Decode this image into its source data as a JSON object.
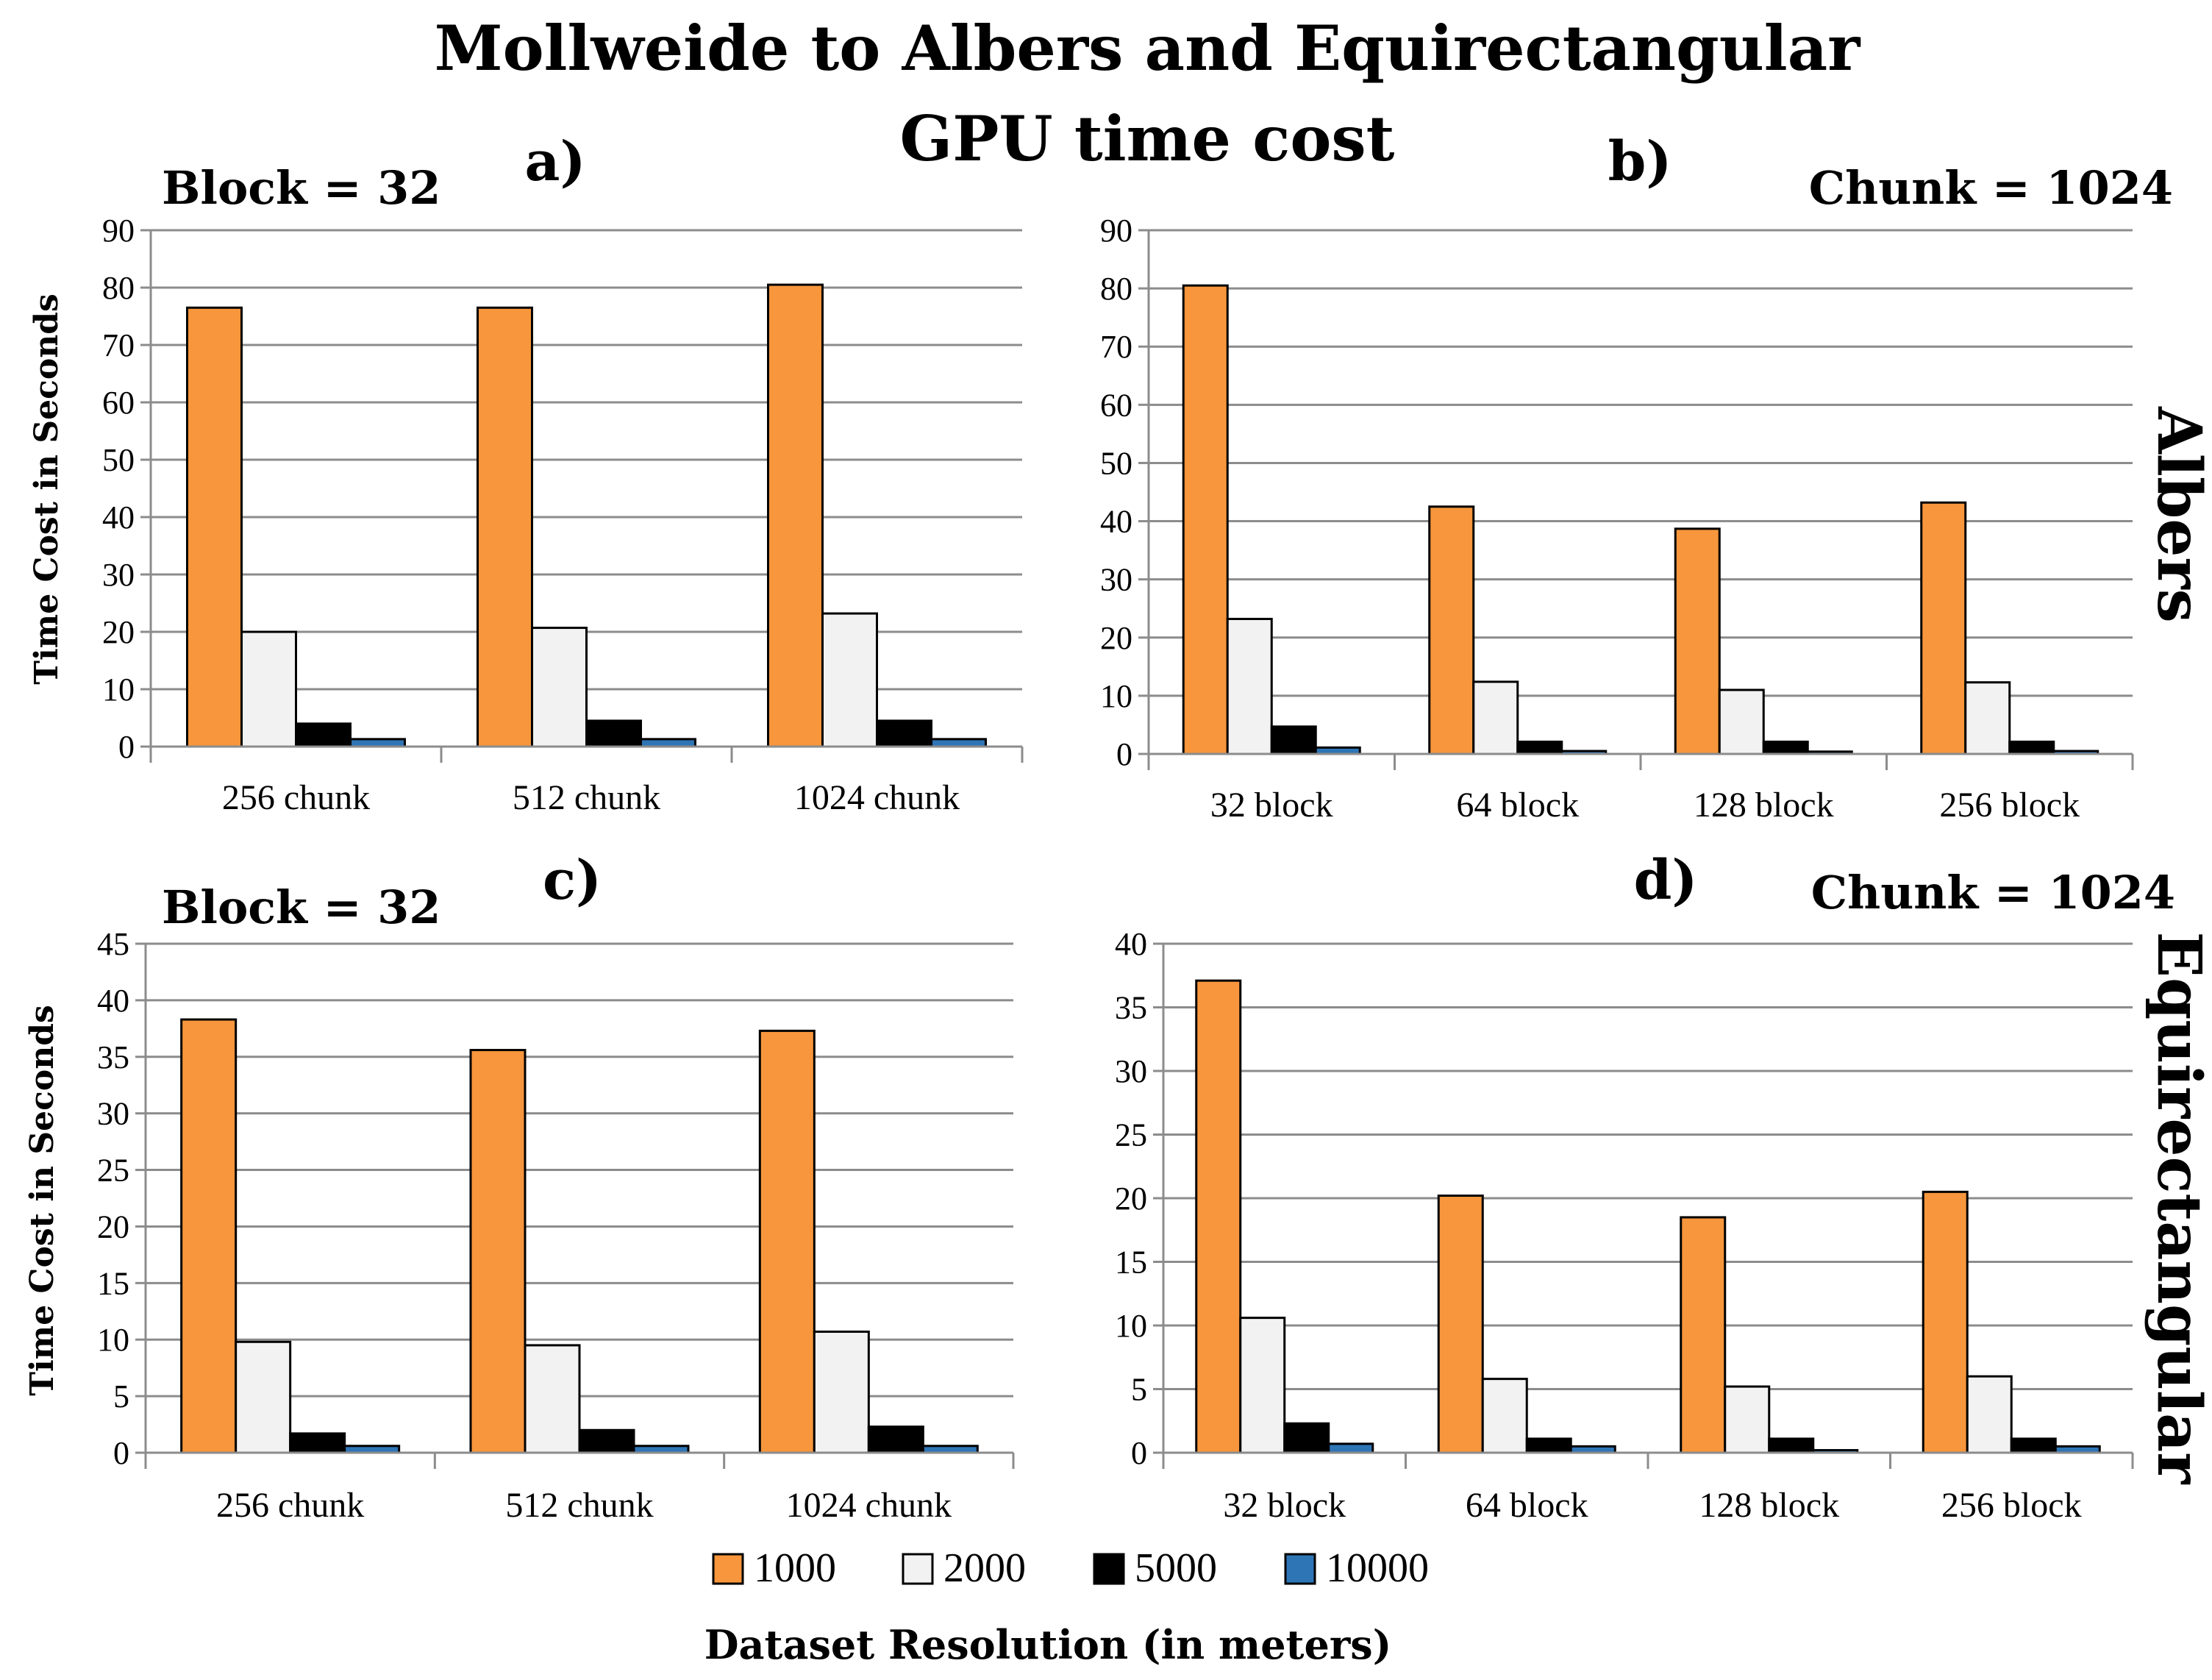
{
  "figure": {
    "title_line1": "Mollweide to Albers and Equirectangular",
    "title_line2": "GPU time cost",
    "row_labels": [
      "Albers",
      "Equirectangular"
    ],
    "x_title": "Dataset Resolution (in meters)",
    "legend": {
      "series": [
        "1000",
        "2000",
        "5000",
        "10000"
      ],
      "colors": [
        "#F7963C",
        "#F2F2F2",
        "#000000",
        "#2E75B6"
      ]
    }
  },
  "chart_data": [
    {
      "type": "bar",
      "panel_label": "a)",
      "info": "Block = 32",
      "ylabel": "Time Cost in Seconds",
      "ylim": [
        0,
        90
      ],
      "yticks": [
        "0",
        "10",
        "20",
        "30",
        "40",
        "50",
        "60",
        "70",
        "80",
        "90"
      ],
      "categories": [
        "256 chunk",
        "512 chunk",
        "1024 chunk"
      ],
      "series": [
        {
          "name": "1000",
          "values": [
            76.5,
            76.5,
            80.5
          ]
        },
        {
          "name": "2000",
          "values": [
            20,
            20.7,
            23.2
          ]
        },
        {
          "name": "5000",
          "values": [
            4,
            4.5,
            4.5
          ]
        },
        {
          "name": "10000",
          "values": [
            1.3,
            1.3,
            1.3
          ]
        }
      ]
    },
    {
      "type": "bar",
      "panel_label": "b)",
      "info": "Chunk = 1024",
      "ylim": [
        0,
        90
      ],
      "yticks": [
        "0",
        "10",
        "20",
        "30",
        "40",
        "50",
        "60",
        "70",
        "80",
        "90"
      ],
      "categories": [
        "32 block",
        "64 block",
        "128 block",
        "256 block"
      ],
      "series": [
        {
          "name": "1000",
          "values": [
            80.5,
            42.5,
            38.7,
            43.2
          ]
        },
        {
          "name": "2000",
          "values": [
            23.2,
            12.4,
            11,
            12.3
          ]
        },
        {
          "name": "5000",
          "values": [
            4.7,
            2.1,
            2.1,
            2.1
          ]
        },
        {
          "name": "10000",
          "values": [
            1.1,
            0.5,
            0.4,
            0.5
          ]
        }
      ]
    },
    {
      "type": "bar",
      "panel_label": "c)",
      "info": "Block = 32",
      "ylabel": "Time Cost in Seconds",
      "ylim": [
        0,
        45
      ],
      "yticks": [
        "0",
        "5",
        "10",
        "15",
        "20",
        "25",
        "30",
        "35",
        "40",
        "45"
      ],
      "categories": [
        "256 chunk",
        "512 chunk",
        "1024 chunk"
      ],
      "series": [
        {
          "name": "1000",
          "values": [
            38.3,
            35.6,
            37.3
          ]
        },
        {
          "name": "2000",
          "values": [
            9.8,
            9.5,
            10.7
          ]
        },
        {
          "name": "5000",
          "values": [
            1.7,
            2,
            2.3
          ]
        },
        {
          "name": "10000",
          "values": [
            0.6,
            0.6,
            0.6
          ]
        }
      ]
    },
    {
      "type": "bar",
      "panel_label": "d)",
      "info": "Chunk = 1024",
      "ylim": [
        0,
        40
      ],
      "yticks": [
        "0",
        "5",
        "10",
        "15",
        "20",
        "25",
        "30",
        "35",
        "40"
      ],
      "categories": [
        "32 block",
        "64 block",
        "128 block",
        "256 block"
      ],
      "series": [
        {
          "name": "1000",
          "values": [
            37.1,
            20.2,
            18.5,
            20.5
          ]
        },
        {
          "name": "2000",
          "values": [
            10.6,
            5.8,
            5.2,
            6
          ]
        },
        {
          "name": "5000",
          "values": [
            2.3,
            1.1,
            1.1,
            1.1
          ]
        },
        {
          "name": "10000",
          "values": [
            0.7,
            0.5,
            0.2,
            0.5
          ]
        }
      ]
    }
  ]
}
